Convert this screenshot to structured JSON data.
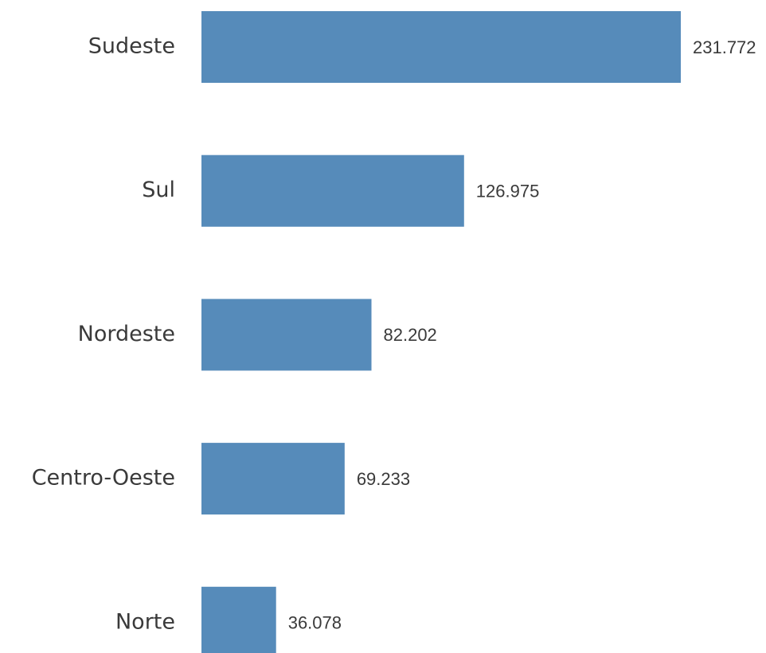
{
  "chart_data": {
    "type": "barh",
    "categories": [
      "Sudeste",
      "Sul",
      "Nordeste",
      "Centro-Oeste",
      "Norte"
    ],
    "values": [
      231772,
      126975,
      82202,
      69233,
      36078
    ],
    "value_labels": [
      "231.772",
      "126.975",
      "82.202",
      "69.233",
      "36.078"
    ],
    "color": "#568bba"
  }
}
